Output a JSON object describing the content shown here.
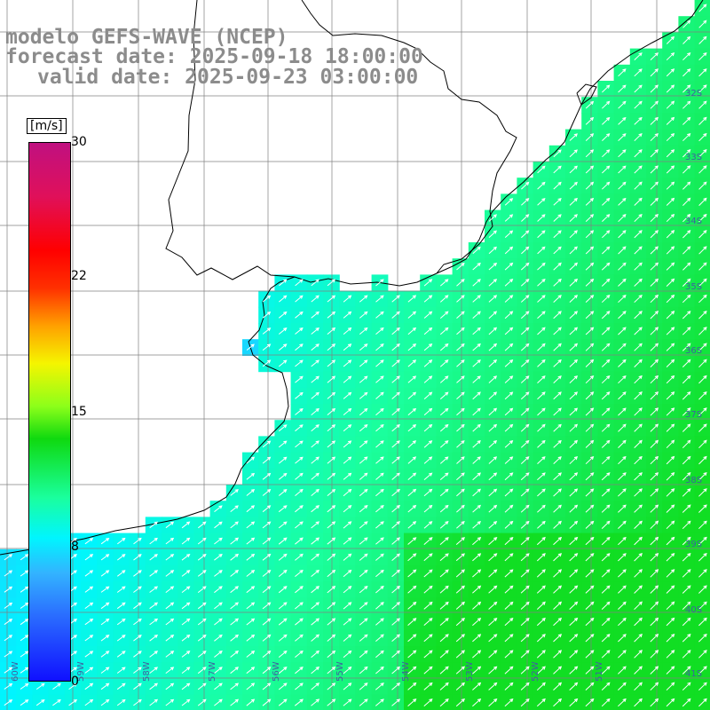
{
  "title": {
    "line1": "modelo GEFS-WAVE (NCEP)",
    "line2": "forecast date: 2025-09-18 18:00:00",
    "line3": "valid date: 2025-09-23 03:00:00"
  },
  "colorbar": {
    "unit": "[m/s]",
    "ticks": [
      {
        "value": 30,
        "label": "30"
      },
      {
        "value": 22,
        "label": "22"
      },
      {
        "value": 15,
        "label": "15"
      },
      {
        "value": 8,
        "label": "8"
      },
      {
        "value": 0,
        "label": "0"
      }
    ],
    "range": [
      0,
      30
    ]
  },
  "lat_labels": [
    "32S",
    "33S",
    "34S",
    "35S",
    "36S",
    "37S",
    "38S",
    "39S",
    "40S",
    "41S"
  ],
  "lon_labels": [
    "60W",
    "59W",
    "58W",
    "57W",
    "56W",
    "55W",
    "54W",
    "53W",
    "52W",
    "51W"
  ],
  "colors": {
    "land": "#ffffff",
    "coast": "#000000",
    "grid": "#808080",
    "arrow": "#ffffff",
    "title": "#8c8c8c"
  }
}
